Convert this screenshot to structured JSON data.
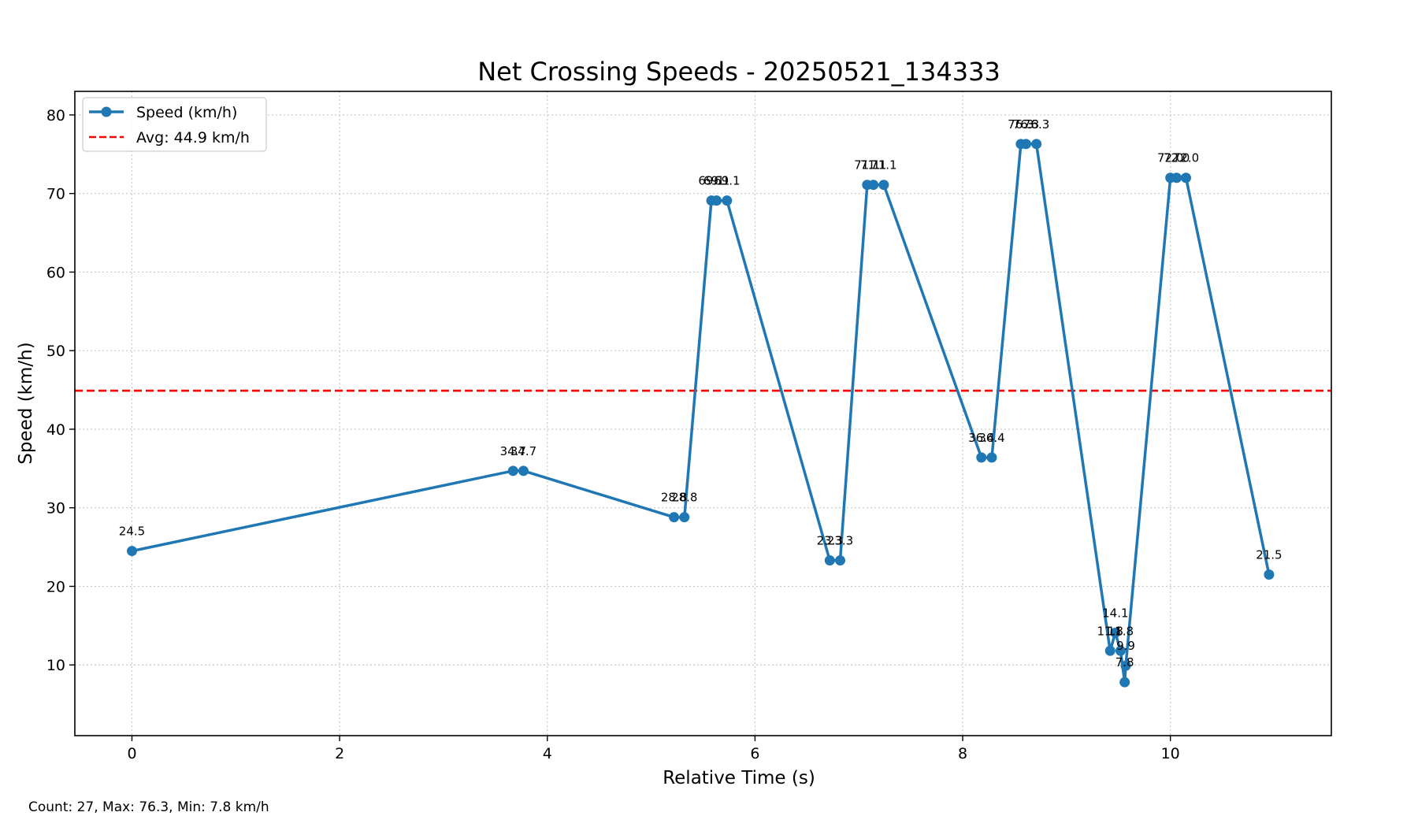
{
  "chart_data": {
    "type": "line",
    "title": "Net Crossing Speeds - 20250521_134333",
    "xlabel": "Relative Time (s)",
    "ylabel": "Speed (km/h)",
    "xlim": [
      -0.55,
      11.55
    ],
    "ylim": [
      1,
      83
    ],
    "xticks": [
      0,
      2,
      4,
      6,
      8,
      10
    ],
    "xtick_labels": [
      "0",
      "2",
      "4",
      "6",
      "8",
      "10"
    ],
    "yticks": [
      10,
      20,
      30,
      40,
      50,
      60,
      70,
      80
    ],
    "ytick_labels": [
      "10",
      "20",
      "30",
      "40",
      "50",
      "60",
      "70",
      "80"
    ],
    "grid": true,
    "legend_placement": "top-left",
    "series": [
      {
        "name": "Speed (km/h)",
        "color": "#1f77b4",
        "x": [
          0.0,
          3.67,
          3.77,
          5.22,
          5.32,
          5.58,
          5.63,
          5.73,
          6.72,
          6.82,
          7.08,
          7.14,
          7.24,
          8.18,
          8.28,
          8.56,
          8.61,
          8.71,
          9.42,
          9.47,
          9.52,
          9.56,
          9.57,
          10.0,
          10.06,
          10.15,
          10.95
        ],
        "values": [
          24.5,
          34.7,
          34.7,
          28.8,
          28.8,
          69.1,
          69.1,
          69.1,
          23.3,
          23.3,
          71.1,
          71.1,
          71.1,
          36.4,
          36.4,
          76.3,
          76.3,
          76.3,
          11.8,
          14.1,
          11.8,
          7.8,
          9.9,
          72.0,
          72.0,
          72.0,
          21.5
        ],
        "labels": [
          "24.5",
          "34.7",
          "34.7",
          "28.8",
          "28.8",
          "69.1",
          "69.1",
          "69.1",
          "23.3",
          "23.3",
          "71.1",
          "71.1",
          "71.1",
          "36.4",
          "36.4",
          "76.3",
          "76.3",
          "76.3",
          "11.8",
          "14.1",
          "11.8",
          "7.8",
          "9.9",
          "72.0",
          "72.0",
          "72.0",
          "21.5"
        ]
      }
    ],
    "average": {
      "name": "Avg: 44.9 km/h",
      "value": 44.9,
      "color": "#ff0000"
    },
    "footer": "Count: 27, Max: 76.3, Min: 7.8 km/h"
  }
}
